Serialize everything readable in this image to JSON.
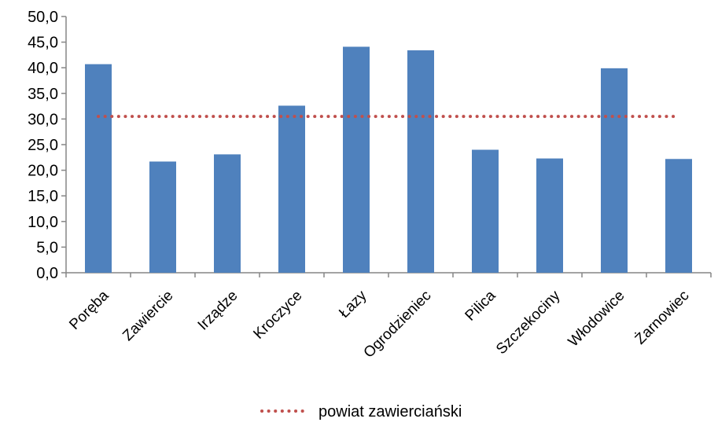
{
  "chart_data": {
    "type": "bar",
    "categories": [
      "Poręba",
      "Zawiercie",
      "Irządze",
      "Kroczyce",
      "Łazy",
      "Ogrodzieniec",
      "Pilica",
      "Szczekociny",
      "Włodowice",
      "Żarnowiec"
    ],
    "series": [
      {
        "values": [
          40.7,
          21.7,
          23.1,
          32.6,
          44.1,
          43.4,
          24.0,
          22.3,
          39.9,
          22.2
        ],
        "color": "#4f81bd"
      }
    ],
    "reference_line": {
      "name": "powiat zawierciański",
      "value": 30.5,
      "color": "#c0504d",
      "style": "dotted"
    },
    "y_ticks": [
      "0,0",
      "5,0",
      "10,0",
      "15,0",
      "20,0",
      "25,0",
      "30,0",
      "35,0",
      "40,0",
      "45,0",
      "50,0"
    ],
    "ylim": [
      0,
      50
    ],
    "ystep": 5,
    "grid": false,
    "legend": "bottom-center",
    "title": "",
    "xlabel": "",
    "ylabel": ""
  }
}
